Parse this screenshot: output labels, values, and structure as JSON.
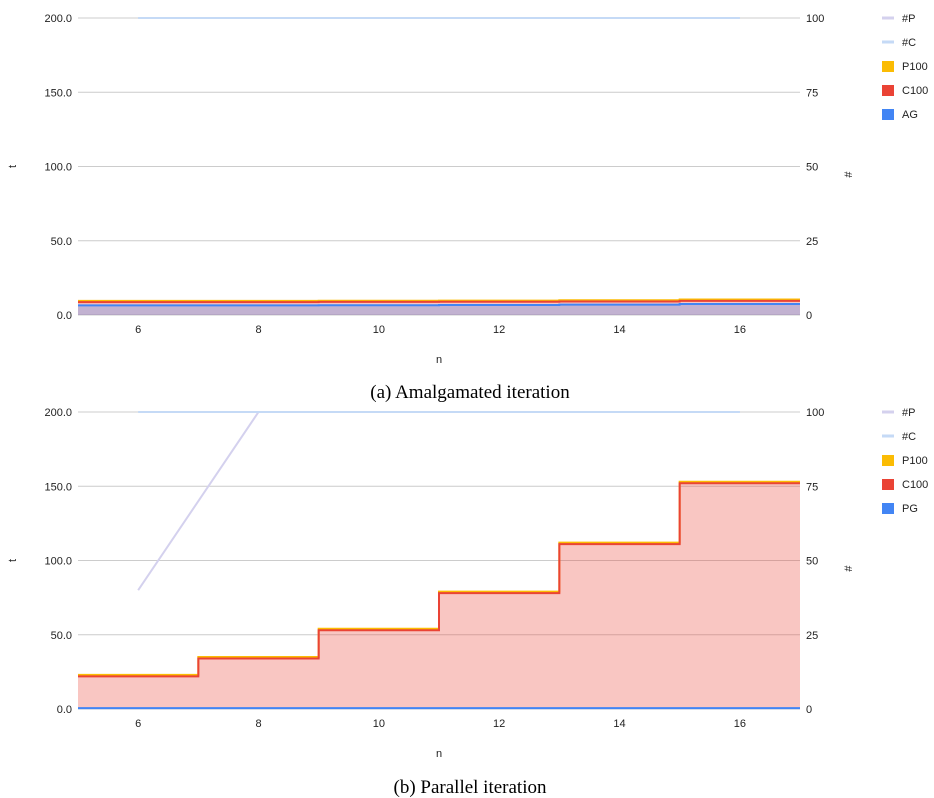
{
  "chart_data": [
    {
      "type": "area",
      "caption": "(a) Amalgamated iteration",
      "xlabel": "n",
      "ylabel": "t",
      "y2label": "#",
      "xlim": [
        5,
        17
      ],
      "ylim": [
        0,
        200
      ],
      "y2lim": [
        0,
        100
      ],
      "xticks": [
        "6",
        "8",
        "10",
        "12",
        "14",
        "16"
      ],
      "yticks": [
        "0.0",
        "50.0",
        "100.0",
        "150.0",
        "200.0"
      ],
      "y2ticks": [
        "0",
        "25",
        "50",
        "75",
        "100"
      ],
      "x": [
        5,
        6,
        7,
        8,
        9,
        10,
        11,
        12,
        13,
        14,
        15,
        16,
        17
      ],
      "series": [
        {
          "name": "#P",
          "axis": "right",
          "kind": "line",
          "color": "#d4d1ee",
          "x": [
            6,
            16
          ],
          "values": [
            100,
            100
          ]
        },
        {
          "name": "#C",
          "axis": "right",
          "kind": "line",
          "color": "#c5daf6",
          "x": [
            6,
            16
          ],
          "values": [
            100,
            100
          ]
        },
        {
          "name": "P100",
          "axis": "left",
          "kind": "step",
          "color": "#fbbc04",
          "values": [
            9.5,
            9.5,
            9.5,
            9.5,
            9.6,
            9.6,
            9.7,
            9.7,
            9.9,
            9.9,
            10.4,
            10.4,
            10.4
          ]
        },
        {
          "name": "C100",
          "axis": "left",
          "kind": "step",
          "color": "#ea4335",
          "values": [
            8.7,
            8.7,
            8.7,
            8.7,
            8.8,
            8.8,
            8.9,
            8.9,
            9.1,
            9.1,
            9.5,
            9.5,
            9.5
          ]
        },
        {
          "name": "AG",
          "axis": "left",
          "kind": "step",
          "color": "#4285f4",
          "values": [
            6.5,
            6.5,
            6.5,
            6.5,
            6.6,
            6.6,
            6.7,
            6.7,
            7.0,
            7.0,
            7.4,
            7.4,
            7.4
          ]
        }
      ],
      "legend": [
        {
          "label": "#P",
          "color": "#d4d1ee",
          "style": "line"
        },
        {
          "label": "#C",
          "color": "#c5daf6",
          "style": "line"
        },
        {
          "label": "P100",
          "color": "#fbbc04",
          "style": "box"
        },
        {
          "label": "C100",
          "color": "#ea4335",
          "style": "box"
        },
        {
          "label": "AG",
          "color": "#4285f4",
          "style": "box"
        }
      ],
      "legend_position": "right",
      "grid": true
    },
    {
      "type": "area",
      "caption": "(b) Parallel iteration",
      "xlabel": "n",
      "ylabel": "t",
      "y2label": "#",
      "xlim": [
        5,
        17
      ],
      "ylim": [
        0,
        200
      ],
      "y2lim": [
        0,
        100
      ],
      "xticks": [
        "6",
        "8",
        "10",
        "12",
        "14",
        "16"
      ],
      "yticks": [
        "0.0",
        "50.0",
        "100.0",
        "150.0",
        "200.0"
      ],
      "y2ticks": [
        "0",
        "25",
        "50",
        "75",
        "100"
      ],
      "x": [
        5,
        6,
        7,
        8,
        9,
        10,
        11,
        12,
        13,
        14,
        15,
        16,
        17
      ],
      "series": [
        {
          "name": "#P",
          "axis": "right",
          "kind": "line",
          "color": "#d4d1ee",
          "x": [
            6,
            8,
            16
          ],
          "values": [
            40,
            100,
            100
          ]
        },
        {
          "name": "#C",
          "axis": "right",
          "kind": "line",
          "color": "#c5daf6",
          "x": [
            6,
            16
          ],
          "values": [
            100,
            100
          ]
        },
        {
          "name": "P100",
          "axis": "left",
          "kind": "step",
          "color": "#fbbc04",
          "values": [
            23,
            23,
            35,
            35,
            54,
            54,
            79,
            79,
            112,
            112,
            153,
            153,
            153
          ]
        },
        {
          "name": "C100",
          "axis": "left",
          "kind": "step",
          "color": "#ea4335",
          "values": [
            22,
            22,
            34,
            34,
            53,
            53,
            78,
            78,
            111,
            111,
            152,
            152,
            152
          ]
        },
        {
          "name": "PG",
          "axis": "left",
          "kind": "step",
          "color": "#4285f4",
          "values": [
            0.6,
            0.6,
            0.6,
            0.6,
            0.6,
            0.6,
            0.6,
            0.6,
            0.6,
            0.6,
            0.6,
            0.6,
            0.6
          ]
        }
      ],
      "legend": [
        {
          "label": "#P",
          "color": "#d4d1ee",
          "style": "line"
        },
        {
          "label": "#C",
          "color": "#c5daf6",
          "style": "line"
        },
        {
          "label": "P100",
          "color": "#fbbc04",
          "style": "box"
        },
        {
          "label": "C100",
          "color": "#ea4335",
          "style": "box"
        },
        {
          "label": "PG",
          "color": "#4285f4",
          "style": "box"
        }
      ],
      "legend_position": "right",
      "grid": true
    }
  ]
}
